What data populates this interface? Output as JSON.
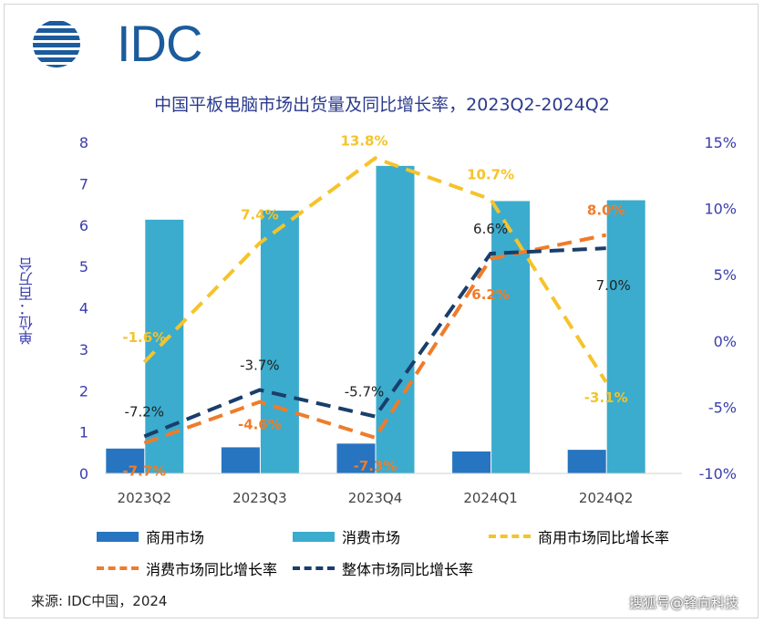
{
  "logo": {
    "text": "IDC"
  },
  "chart_data": {
    "type": "bar",
    "title": "中国平板电脑市场出货量及同比增长率，2023Q2-2024Q2",
    "ylabel": "单位：百万台",
    "ylim": [
      0,
      8
    ],
    "y2lim": [
      -10,
      15
    ],
    "yticks": [
      "0",
      "1",
      "2",
      "3",
      "4",
      "5",
      "6",
      "7",
      "8"
    ],
    "y2ticks": [
      "-10%",
      "-5%",
      "0%",
      "5%",
      "10%",
      "15%"
    ],
    "categories": [
      "2023Q2",
      "2023Q3",
      "2023Q4",
      "2024Q1",
      "2024Q2"
    ],
    "series": [
      {
        "name": "商用市场",
        "kind": "bar",
        "values": [
          0.6,
          0.63,
          0.72,
          0.53,
          0.57
        ],
        "color": "#2774c0"
      },
      {
        "name": "消费市场",
        "kind": "bar",
        "values": [
          6.13,
          6.35,
          7.43,
          6.58,
          6.6
        ],
        "color": "#3baccd"
      },
      {
        "name": "商用市场同比增长率",
        "kind": "line",
        "axis": "right",
        "values": [
          -1.6,
          7.4,
          13.8,
          10.7,
          -3.1
        ],
        "labels": [
          "-1.6%",
          "7.4%",
          "13.8%",
          "10.7%",
          "-3.1%"
        ],
        "color": "#f5c32b"
      },
      {
        "name": "消费市场同比增长率",
        "kind": "line",
        "axis": "right",
        "values": [
          -7.7,
          -4.6,
          -7.3,
          6.2,
          8.0
        ],
        "labels": [
          "-7.7%",
          "-4.6%",
          "-7.3%",
          "6.2%",
          "8.0%"
        ],
        "color": "#ef7c2a"
      },
      {
        "name": "整体市场同比增长率",
        "kind": "line",
        "axis": "right",
        "values": [
          -7.2,
          -3.7,
          -5.7,
          6.6,
          7.0
        ],
        "labels": [
          "-7.2%",
          "-3.7%",
          "-5.7%",
          "6.6%",
          "7.0%"
        ],
        "color": "#1a3e6b"
      }
    ],
    "grid": false,
    "legend": "bottom"
  },
  "source": "来源: IDC中国，2024",
  "watermark": "搜狐号@锋向科技"
}
